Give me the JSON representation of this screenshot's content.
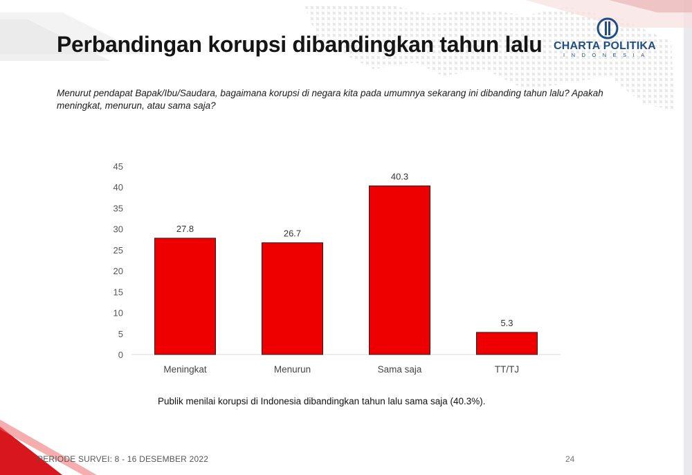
{
  "slide": {
    "title": "Perbandingan korupsi dibandingkan tahun lalu",
    "question": "Menurut pendapat Bapak/Ibu/Saudara, bagaimana korupsi di negara kita pada umumnya sekarang ini dibanding tahun lalu? Apakah meningkat, menurun, atau sama saja?",
    "caption": "Publik menilai korupsi di Indonesia dibandingkan tahun lalu sama saja (40.3%).",
    "period": "PERIODE SURVEI: 8 - 16 DESEMBER 2022",
    "page_number": "24"
  },
  "logo": {
    "name": "CHARTA POLITIKA",
    "sub": "INDONESIA",
    "color": "#1e4e84"
  },
  "colors": {
    "bar": "#ee0000",
    "accent_red": "#d8161e"
  },
  "chart_data": {
    "type": "bar",
    "categories": [
      "Meningkat",
      "Menurun",
      "Sama saja",
      "TT/TJ"
    ],
    "values": [
      27.8,
      26.7,
      40.3,
      5.3
    ],
    "data_labels": [
      "27.8",
      "26.7",
      "40.3",
      "5.3"
    ],
    "ylim": [
      0,
      45
    ],
    "yticks": [
      0,
      5,
      10,
      15,
      20,
      25,
      30,
      35,
      40,
      45
    ],
    "grid": false,
    "legend": "none"
  }
}
